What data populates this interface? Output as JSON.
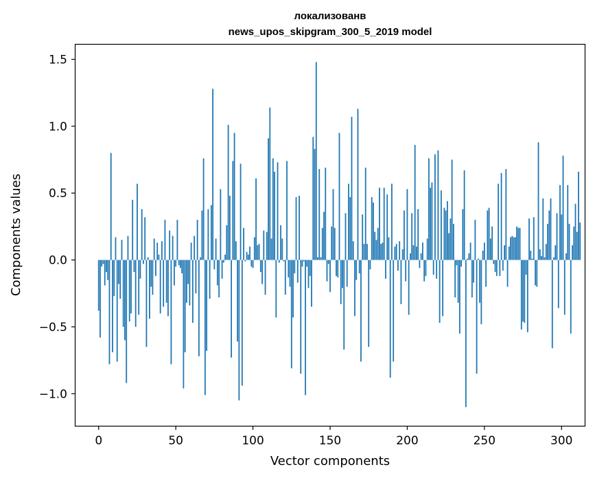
{
  "chart_data": {
    "type": "bar",
    "title": [
      "локализованв",
      "news_upos_skipgram_300_5_2019 model"
    ],
    "xlabel": "Vector components",
    "ylabel": "Components values",
    "xlim": [
      -15,
      315
    ],
    "ylim": [
      -1.24,
      1.61
    ],
    "xticks": [
      0,
      50,
      100,
      150,
      200,
      250,
      300
    ],
    "yticks": [
      -1.0,
      -0.5,
      0.0,
      0.5,
      1.0,
      1.5
    ],
    "ytick_labels": [
      "−1.0",
      "−0.5",
      "0.0",
      "0.5",
      "1.0",
      "1.5"
    ],
    "bar_color": "#1f77b4",
    "values": [
      -0.38,
      -0.58,
      -0.05,
      -0.03,
      -0.19,
      -0.09,
      -0.15,
      -0.78,
      0.8,
      -0.69,
      -0.27,
      0.17,
      -0.76,
      -0.18,
      -0.29,
      0.15,
      -0.5,
      -0.6,
      -0.92,
      0.18,
      -0.46,
      -0.4,
      0.45,
      -0.09,
      -0.5,
      0.57,
      -0.41,
      -0.14,
      0.38,
      -0.03,
      0.32,
      -0.65,
      0.02,
      -0.44,
      -0.2,
      -0.26,
      0.16,
      -0.12,
      0.13,
      0.04,
      -0.4,
      0.14,
      -0.35,
      0.3,
      -0.32,
      -0.42,
      0.22,
      -0.78,
      0.18,
      -0.19,
      -0.05,
      0.3,
      -0.04,
      -0.06,
      -0.1,
      -0.96,
      -0.69,
      -0.32,
      -0.18,
      -0.34,
      0.13,
      -0.47,
      0.18,
      -0.25,
      0.3,
      -0.72,
      0.02,
      0.37,
      0.76,
      -1.01,
      -0.68,
      0.38,
      -0.29,
      0.41,
      1.28,
      -0.07,
      0.16,
      -0.19,
      -0.28,
      0.53,
      -0.14,
      -0.02,
      0.04,
      0.26,
      1.01,
      0.48,
      -0.73,
      0.74,
      0.95,
      0.14,
      -0.61,
      -1.05,
      0.72,
      -0.94,
      0.24,
      -0.01,
      0.06,
      0.04,
      0.1,
      -0.05,
      -0.06,
      0.17,
      0.61,
      0.11,
      0.12,
      -0.09,
      -0.18,
      0.22,
      -0.26,
      0.21,
      0.91,
      1.14,
      0.16,
      0.76,
      0.66,
      -0.43,
      0.73,
      -0.02,
      0.26,
      0.16,
      -0.01,
      -0.26,
      0.74,
      -0.13,
      -0.2,
      -0.81,
      -0.43,
      -0.1,
      0.47,
      -0.17,
      0.48,
      -0.85,
      -0.05,
      -0.01,
      -1.01,
      -0.05,
      -0.21,
      -0.12,
      -0.35,
      0.92,
      0.83,
      1.48,
      0.02,
      0.68,
      0.02,
      0.24,
      0.36,
      0.69,
      -0.16,
      -0.03,
      -0.24,
      0.25,
      0.53,
      0.24,
      -0.12,
      -0.13,
      0.95,
      -0.33,
      -0.21,
      -0.67,
      0.35,
      -0.2,
      0.57,
      0.47,
      1.07,
      0.14,
      -0.42,
      -0.15,
      1.13,
      -0.1,
      -0.76,
      0.34,
      0.12,
      0.69,
      0.12,
      -0.65,
      -0.07,
      0.47,
      0.43,
      0.21,
      0.15,
      0.24,
      0.54,
      0.12,
      0.13,
      0.54,
      -0.14,
      0.49,
      0.17,
      -0.88,
      0.57,
      -0.76,
      0.1,
      0.12,
      -0.08,
      0.14,
      -0.33,
      0.08,
      0.37,
      -0.16,
      0.53,
      -0.41,
      0.05,
      0.35,
      0.11,
      0.86,
      0.1,
      0.38,
      -0.06,
      0.05,
      0.13,
      -0.16,
      -0.12,
      0.16,
      0.76,
      0.54,
      0.58,
      -0.11,
      0.79,
      -0.14,
      0.82,
      -0.47,
      0.52,
      -0.42,
      0.39,
      0.37,
      0.44,
      0.2,
      0.31,
      0.75,
      0.27,
      -0.28,
      -0.04,
      -0.32,
      -0.55,
      -0.05,
      0.38,
      0.67,
      -1.1,
      0.01,
      0.05,
      0.13,
      -0.28,
      -0.17,
      0.3,
      -0.85,
      0.01,
      -0.32,
      -0.48,
      0.07,
      0.13,
      -0.2,
      0.37,
      0.39,
      0.16,
      0.25,
      -0.03,
      -0.09,
      -0.12,
      0.57,
      -0.12,
      0.65,
      -0.08,
      0.11,
      0.68,
      -0.2,
      0.1,
      0.17,
      0.18,
      0.17,
      0.17,
      0.25,
      0.24,
      0.24,
      -0.52,
      -0.46,
      -0.47,
      -0.11,
      -0.54,
      0.31,
      0.07,
      0.01,
      0.32,
      -0.19,
      -0.2,
      0.88,
      0.08,
      0.03,
      0.46,
      0.02,
      0.12,
      0.27,
      0.37,
      0.46,
      -0.66,
      0.02,
      0.11,
      0.35,
      -0.36,
      0.56,
      0.34,
      0.78,
      -0.41,
      0.05,
      0.56,
      0.27,
      -0.55,
      0.11,
      0.25,
      0.42,
      0.21,
      0.66,
      0.28
    ]
  }
}
